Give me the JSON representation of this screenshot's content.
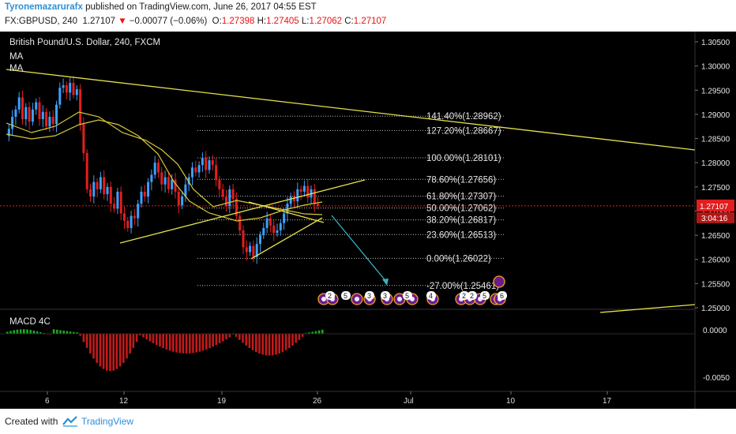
{
  "header": {
    "author": "Tyronemazarurafx",
    "published_text": "published on TradingView.com, June 26, 2017 04:55 EST",
    "symbol": "FX:GBPUSD, 240",
    "last_price": "1.27107",
    "arrow": "▼",
    "change": "−0.00077 (−0.06%)",
    "o_label": "O:",
    "o_value": "1.27398",
    "h_label": "H:",
    "h_value": "1.27405",
    "l_label": "L:",
    "l_value": "1.27062",
    "c_label": "C:",
    "c_value": "1.27107"
  },
  "legend": {
    "title": "British Pound/U.S. Dollar, 240, FXCM",
    "ma1": "MA",
    "ma2": "MA"
  },
  "macd": {
    "label": "MACD 4C"
  },
  "price_axis": {
    "ticks": [
      "1.30500",
      "1.30000",
      "1.29500",
      "1.29000",
      "1.28500",
      "1.28000",
      "1.27500",
      "1.27000",
      "1.26500",
      "1.26000",
      "1.25500",
      "1.25000"
    ],
    "current_price": "1.27107",
    "countdown": "3:04:16"
  },
  "macd_axis": {
    "ticks": [
      "0.0000",
      "-0.0050"
    ]
  },
  "time_axis": {
    "ticks": [
      "6",
      "12",
      "19",
      "26",
      "Jul",
      "10",
      "17"
    ]
  },
  "fib_levels": [
    {
      "label": "141.40%(1.28962)",
      "value": 1.28962
    },
    {
      "label": "127.20%(1.28667)",
      "value": 1.28667
    },
    {
      "label": "100.00%(1.28101)",
      "value": 1.28101
    },
    {
      "label": "78.60%(1.27656)",
      "value": 1.27656
    },
    {
      "label": "61.80%(1.27307)",
      "value": 1.27307
    },
    {
      "label": "50.00%(1.27062)",
      "value": 1.27062
    },
    {
      "label": "38.20%(1.26817)",
      "value": 1.26817
    },
    {
      "label": "23.60%(1.26513)",
      "value": 1.26513
    },
    {
      "label": "0.00%(1.26022)",
      "value": 1.26022
    },
    {
      "label": "-27.00%(1.25461)",
      "value": 1.25461
    }
  ],
  "events": [
    "2",
    "5",
    "3",
    "3",
    "5",
    "4",
    "2",
    "2",
    "5",
    "6"
  ],
  "colors": {
    "background": "#000000",
    "up_candle": "#3da1ff",
    "down_candle": "#e31e1e",
    "ma": "#d8c83a",
    "trendline": "#e5e04a",
    "forecast_arrow": "#37b6c4",
    "macd_pos": "#1fa81f",
    "macd_neg": "#c41a1a",
    "price_marker": "#e31e1e",
    "accent": "#2c8fd6"
  },
  "footer": {
    "created_with": "Created with",
    "brand": "TradingView"
  }
}
